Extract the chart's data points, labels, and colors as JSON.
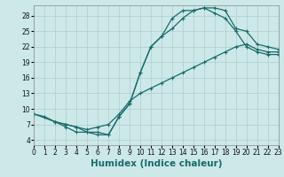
{
  "xlabel": "Humidex (Indice chaleur)",
  "bg_color": "#cce8e8",
  "line_color": "#1a6b6b",
  "curve1_x": [
    0,
    1,
    2,
    3,
    4,
    5,
    6,
    7,
    8,
    9,
    10,
    11,
    12,
    13,
    14,
    15,
    16,
    17,
    18,
    19,
    20,
    21,
    22,
    23
  ],
  "curve1_y": [
    9,
    8.5,
    7.5,
    7.0,
    6.5,
    5.5,
    5.5,
    5.0,
    8.5,
    11.0,
    17.0,
    22.0,
    24.0,
    27.5,
    29.0,
    29.0,
    29.5,
    28.5,
    27.5,
    25.0,
    22.0,
    21.0,
    20.5,
    20.5
  ],
  "curve2_x": [
    0,
    2,
    3,
    4,
    5,
    6,
    7,
    8,
    9,
    10,
    11,
    12,
    13,
    14,
    15,
    16,
    17,
    18,
    19,
    20,
    21,
    22,
    23
  ],
  "curve2_y": [
    9,
    7.5,
    7.0,
    6.5,
    6.0,
    6.5,
    7.0,
    9.0,
    11.5,
    13.0,
    14.0,
    15.0,
    16.0,
    17.0,
    18.0,
    19.0,
    20.0,
    21.0,
    22.0,
    22.5,
    21.5,
    21.0,
    21.0
  ],
  "curve3_x": [
    2,
    3,
    4,
    5,
    6,
    7,
    8,
    9,
    10,
    11,
    12,
    13,
    14,
    15,
    16,
    17,
    18,
    19,
    20,
    21,
    22,
    23
  ],
  "curve3_y": [
    7.5,
    6.5,
    5.5,
    5.5,
    5.0,
    5.0,
    8.5,
    11.0,
    17.0,
    22.0,
    24.0,
    25.5,
    27.5,
    29.0,
    29.5,
    29.5,
    29.0,
    25.5,
    25.0,
    22.5,
    22.0,
    21.5
  ],
  "xlim": [
    0,
    23
  ],
  "ylim": [
    3,
    30
  ],
  "yticks": [
    4,
    7,
    10,
    13,
    16,
    19,
    22,
    25,
    28
  ],
  "xticks": [
    0,
    1,
    2,
    3,
    4,
    5,
    6,
    7,
    8,
    9,
    10,
    11,
    12,
    13,
    14,
    15,
    16,
    17,
    18,
    19,
    20,
    21,
    22,
    23
  ],
  "grid_color": "#b0cccc",
  "tick_fontsize": 5.5,
  "xlabel_fontsize": 7.5,
  "marker_size": 2.5,
  "line_width": 0.9
}
